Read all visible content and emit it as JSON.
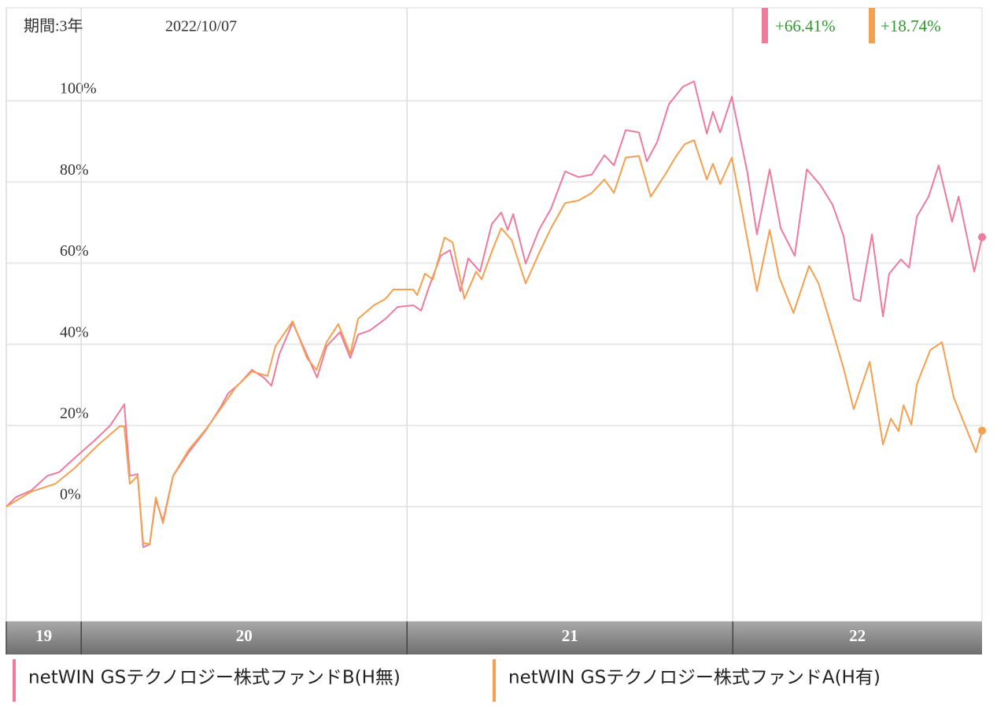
{
  "chart_data": {
    "type": "line",
    "period_label": "期間:3年",
    "date": "2022/10/07",
    "xlim": [
      2019.77,
      2022.765
    ],
    "xticks": [
      {
        "value": 2019.77,
        "label": "19"
      },
      {
        "value": 2020,
        "label": "20"
      },
      {
        "value": 2021,
        "label": "21"
      },
      {
        "value": 2022,
        "label": "22"
      }
    ],
    "ylim": [
      -28.3,
      122.9
    ],
    "yticks": [
      {
        "value": 0,
        "label": "0%"
      },
      {
        "value": 20,
        "label": "20%"
      },
      {
        "value": 40,
        "label": "40%"
      },
      {
        "value": 60,
        "label": "60%"
      },
      {
        "value": 80,
        "label": "80%"
      },
      {
        "value": 100,
        "label": "100%"
      }
    ],
    "grid": true,
    "series": [
      {
        "name": "netWIN GSテクノロジー株式ファンドB(H無)",
        "color": "#ee7a9c",
        "return_label": "+66.41%",
        "x": [
          2019.77,
          2019.799,
          2019.847,
          2019.896,
          2019.932,
          2019.98,
          2020.041,
          2020.089,
          2020.132,
          2020.149,
          2020.173,
          2020.19,
          2020.21,
          2020.229,
          2020.251,
          2020.282,
          2020.33,
          2020.384,
          2020.427,
          2020.451,
          2020.487,
          2020.524,
          2020.56,
          2020.584,
          2020.608,
          2020.649,
          2020.681,
          2020.724,
          2020.753,
          2020.794,
          2020.826,
          2020.85,
          2020.886,
          2020.934,
          2020.971,
          2021.019,
          2021.043,
          2021.067,
          2021.103,
          2021.132,
          2021.164,
          2021.188,
          2021.224,
          2021.26,
          2021.289,
          2021.309,
          2021.326,
          2021.364,
          2021.405,
          2021.442,
          2021.485,
          2021.526,
          2021.567,
          2021.606,
          2021.635,
          2021.671,
          2021.712,
          2021.736,
          2021.768,
          2021.804,
          2021.847,
          2021.881,
          2021.92,
          2021.939,
          2021.961,
          2021.997,
          2022.045,
          2022.074,
          2022.113,
          2022.147,
          2022.19,
          2022.227,
          2022.268,
          2022.306,
          2022.34,
          2022.371,
          2022.391,
          2022.427,
          2022.461,
          2022.48,
          2022.516,
          2022.541,
          2022.565,
          2022.601,
          2022.632,
          2022.673,
          2022.693,
          2022.741,
          2022.765
        ],
        "values": [
          0,
          2.3,
          4,
          7.6,
          8.5,
          12,
          16.3,
          20,
          25.2,
          7.6,
          8,
          -10,
          -9.3,
          1.7,
          -3.5,
          7.6,
          13.4,
          19,
          24.4,
          27.9,
          30.4,
          33.7,
          31.8,
          29.8,
          37.6,
          45.3,
          39.5,
          31.8,
          39.5,
          43,
          36.6,
          42.4,
          43.4,
          46.3,
          49.2,
          49.6,
          48.3,
          54,
          61.8,
          63.2,
          53.1,
          61.2,
          57.9,
          69.6,
          72.5,
          68.2,
          72.1,
          59.9,
          68.2,
          73.4,
          82.6,
          81.2,
          81.8,
          86.6,
          84.1,
          92.8,
          92.2,
          85.1,
          89.9,
          99.2,
          103.5,
          104.8,
          91.9,
          97.3,
          92.2,
          101,
          82.2,
          67.1,
          83.1,
          68.6,
          61.8,
          83.1,
          79.3,
          74.4,
          66.7,
          51.2,
          50.6,
          67.1,
          46.9,
          57.4,
          60.9,
          58.9,
          71.5,
          76.4,
          84.1,
          70.2,
          76.4,
          57.9,
          66.41
        ]
      },
      {
        "name": "netWIN GSテクノロジー株式ファンドA(H有)",
        "color": "#f5a04f",
        "return_label": "+18.74%",
        "x": [
          2019.77,
          2019.847,
          2019.92,
          2019.98,
          2020.053,
          2020.118,
          2020.132,
          2020.149,
          2020.173,
          2020.19,
          2020.21,
          2020.229,
          2020.251,
          2020.282,
          2020.33,
          2020.384,
          2020.427,
          2020.475,
          2020.524,
          2020.572,
          2020.596,
          2020.649,
          2020.693,
          2020.722,
          2020.753,
          2020.789,
          2020.826,
          2020.85,
          2020.898,
          2020.934,
          2020.958,
          2021.019,
          2021.031,
          2021.055,
          2021.079,
          2021.115,
          2021.14,
          2021.176,
          2021.212,
          2021.229,
          2021.26,
          2021.289,
          2021.321,
          2021.364,
          2021.405,
          2021.442,
          2021.485,
          2021.526,
          2021.567,
          2021.606,
          2021.635,
          2021.671,
          2021.712,
          2021.748,
          2021.792,
          2021.823,
          2021.852,
          2021.881,
          2021.92,
          2021.939,
          2021.961,
          2021.997,
          2022.026,
          2022.074,
          2022.113,
          2022.142,
          2022.186,
          2022.234,
          2022.263,
          2022.299,
          2022.34,
          2022.371,
          2022.42,
          2022.461,
          2022.485,
          2022.509,
          2022.524,
          2022.548,
          2022.565,
          2022.606,
          2022.642,
          2022.678,
          2022.746,
          2022.765
        ],
        "values": [
          0,
          3.7,
          5.6,
          9.5,
          15.3,
          19.8,
          19.8,
          5.6,
          7.6,
          -8.9,
          -9.3,
          2.3,
          -4.1,
          7.6,
          14,
          19.2,
          24,
          29.5,
          33.3,
          32.2,
          39.5,
          45.7,
          36.6,
          33.7,
          40.5,
          45,
          37.6,
          46.3,
          49.6,
          51.2,
          53.5,
          53.5,
          52.1,
          57.4,
          56,
          66.3,
          65.1,
          51.2,
          57.9,
          56,
          62.8,
          68.6,
          65.7,
          55,
          62.4,
          68.6,
          74.8,
          75.4,
          77.3,
          80.6,
          77.3,
          86,
          86.4,
          76.4,
          81.8,
          86,
          89.3,
          90.3,
          80.6,
          84.5,
          79.5,
          86,
          74,
          53.1,
          68.2,
          56.6,
          47.7,
          59.3,
          55,
          45.3,
          34.1,
          24,
          35.7,
          15.3,
          21.7,
          18.6,
          25,
          20.2,
          30.2,
          38.6,
          40.5,
          26.9,
          13.4,
          18.74
        ]
      }
    ]
  }
}
